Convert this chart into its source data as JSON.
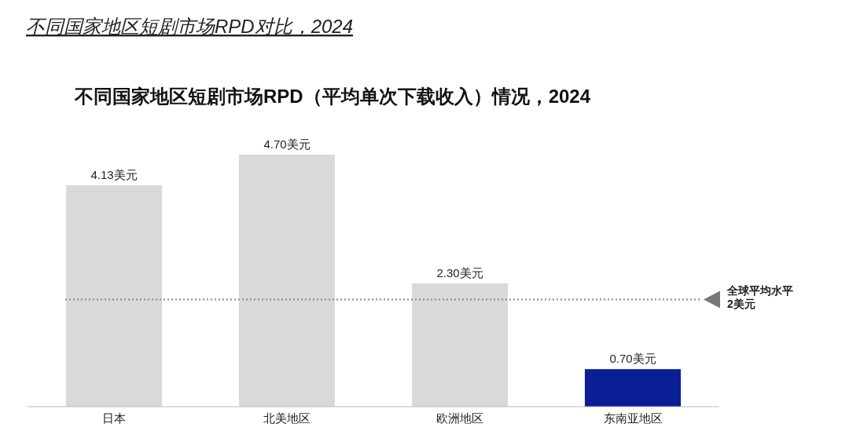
{
  "chart_data": {
    "type": "bar",
    "title": "不同国家地区短剧市场RPD对比，2024",
    "subtitle": "不同国家地区短剧市场RPD（平均单次下载收入）情况，2024",
    "categories": [
      "日本",
      "北美地区",
      "欧洲地区",
      "东南亚地区"
    ],
    "values": [
      4.13,
      4.7,
      2.3,
      0.7
    ],
    "colors": [
      "#d9d9d9",
      "#d9d9d9",
      "#d9d9d9",
      "#0a1e96"
    ],
    "value_labels": [
      "4.13美元",
      "4.70美元",
      "2.30美元",
      "0.70美元"
    ],
    "ref_lines": [
      {
        "axis": "y",
        "value": 2,
        "label": "全球平均水平\n2美元",
        "color": "#888888",
        "line_style": "dotted"
      }
    ]
  }
}
